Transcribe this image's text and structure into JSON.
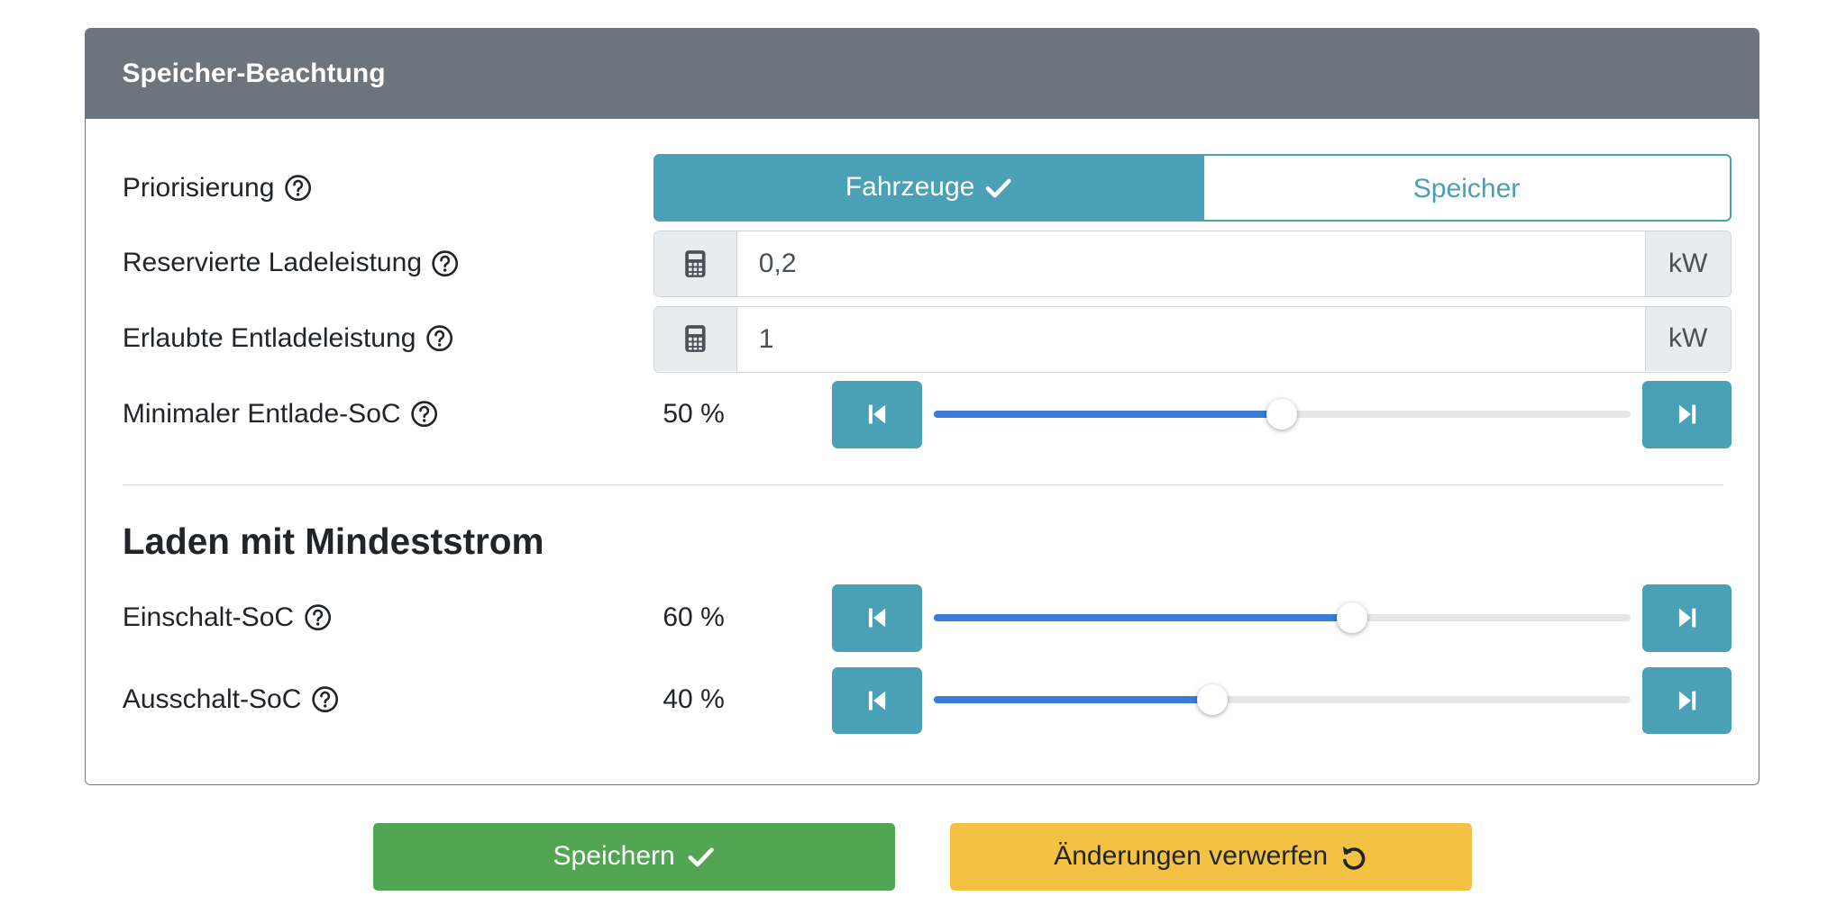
{
  "header": {
    "title": "Speicher-Beachtung"
  },
  "fields": [
    {
      "label": "Priorisierung",
      "options": [
        "Fahrzeuge",
        "Speicher"
      ]
    },
    {
      "label": "Reservierte Ladeleistung",
      "value": "0,2",
      "unit": "kW"
    },
    {
      "label": "Erlaubte Entladeleistung",
      "value": "1",
      "unit": "kW"
    },
    {
      "label": "Minimaler Entlade-SoC",
      "value": 50,
      "value_label": "50 %",
      "range": [
        0,
        100
      ]
    }
  ],
  "section": {
    "title": "Laden mit Mindeststrom",
    "fields": [
      {
        "label": "Einschalt-SoC",
        "value": 60,
        "value_label": "60 %",
        "range": [
          0,
          100
        ]
      },
      {
        "label": "Ausschalt-SoC",
        "value": 40,
        "value_label": "40 %",
        "range": [
          0,
          100
        ]
      }
    ]
  },
  "buttons": [
    "Speichern",
    "Änderungen verwerfen"
  ]
}
